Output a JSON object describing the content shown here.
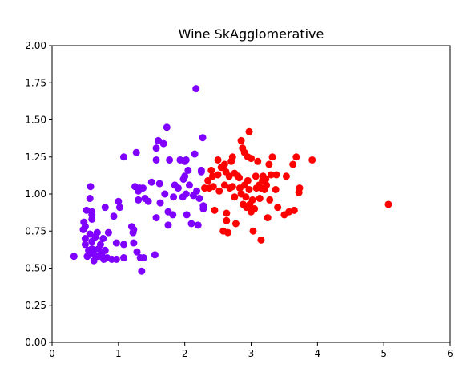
{
  "chart_data": {
    "type": "scatter",
    "title": "Wine SkAgglomerative",
    "xlabel": "",
    "ylabel": "",
    "xlim": [
      0,
      6
    ],
    "ylim": [
      0,
      2
    ],
    "x_ticks": [
      "0",
      "1",
      "2",
      "3",
      "4",
      "5",
      "6"
    ],
    "y_ticks": [
      "0.00",
      "0.25",
      "0.50",
      "0.75",
      "1.00",
      "1.25",
      "1.50",
      "1.75",
      "2.00"
    ],
    "grid": false,
    "legend": "none",
    "series": [
      {
        "color": "#7f00ff",
        "points": [
          [
            0.33,
            0.58
          ],
          [
            0.47,
            0.76
          ],
          [
            0.48,
            0.81
          ],
          [
            0.5,
            0.66
          ],
          [
            0.5,
            0.78
          ],
          [
            0.52,
            0.89
          ],
          [
            0.5,
            0.7
          ],
          [
            0.53,
            0.58
          ],
          [
            0.55,
            0.62
          ],
          [
            0.57,
            0.97
          ],
          [
            0.58,
            1.05
          ],
          [
            0.6,
            0.88
          ],
          [
            0.6,
            0.86
          ],
          [
            0.6,
            0.83
          ],
          [
            0.57,
            0.73
          ],
          [
            0.6,
            0.68
          ],
          [
            0.6,
            0.63
          ],
          [
            0.62,
            0.6
          ],
          [
            0.63,
            0.55
          ],
          [
            0.65,
            0.71
          ],
          [
            0.68,
            0.74
          ],
          [
            0.7,
            0.63
          ],
          [
            0.7,
            0.58
          ],
          [
            0.73,
            0.66
          ],
          [
            0.75,
            0.6
          ],
          [
            0.77,
            0.7
          ],
          [
            0.78,
            0.56
          ],
          [
            0.8,
            0.62
          ],
          [
            0.8,
            0.91
          ],
          [
            0.83,
            0.57
          ],
          [
            0.85,
            0.74
          ],
          [
            0.9,
            0.56
          ],
          [
            0.93,
            0.85
          ],
          [
            0.97,
            0.67
          ],
          [
            0.97,
            0.56
          ],
          [
            1.0,
            0.95
          ],
          [
            1.02,
            0.91
          ],
          [
            1.08,
            0.66
          ],
          [
            1.08,
            0.57
          ],
          [
            1.08,
            1.25
          ],
          [
            1.2,
            0.78
          ],
          [
            1.22,
            0.74
          ],
          [
            1.23,
            0.76
          ],
          [
            1.23,
            0.67
          ],
          [
            1.25,
            1.05
          ],
          [
            1.27,
            1.28
          ],
          [
            1.28,
            0.61
          ],
          [
            1.3,
            0.96
          ],
          [
            1.3,
            1.02
          ],
          [
            1.32,
            1.04
          ],
          [
            1.33,
            0.57
          ],
          [
            1.35,
            0.48
          ],
          [
            1.37,
            1.04
          ],
          [
            1.38,
            0.57
          ],
          [
            1.4,
            0.97
          ],
          [
            1.45,
            0.95
          ],
          [
            1.5,
            1.08
          ],
          [
            1.55,
            0.59
          ],
          [
            1.57,
            1.23
          ],
          [
            1.57,
            1.31
          ],
          [
            1.57,
            0.84
          ],
          [
            1.6,
            1.36
          ],
          [
            1.62,
            1.07
          ],
          [
            1.63,
            0.94
          ],
          [
            1.68,
            1.34
          ],
          [
            1.7,
            1.0
          ],
          [
            1.73,
            1.45
          ],
          [
            1.75,
            0.79
          ],
          [
            1.75,
            0.88
          ],
          [
            1.77,
            1.23
          ],
          [
            1.82,
            0.86
          ],
          [
            1.83,
            0.98
          ],
          [
            1.85,
            1.06
          ],
          [
            1.9,
            1.04
          ],
          [
            1.93,
            1.23
          ],
          [
            1.97,
            0.98
          ],
          [
            1.98,
            1.1
          ],
          [
            2.0,
            1.12
          ],
          [
            2.0,
            1.22
          ],
          [
            2.02,
            1.23
          ],
          [
            2.02,
            1.0
          ],
          [
            2.03,
            0.86
          ],
          [
            2.05,
            1.16
          ],
          [
            2.07,
            1.06
          ],
          [
            2.1,
            0.8
          ],
          [
            2.13,
            0.99
          ],
          [
            2.15,
            1.27
          ],
          [
            2.17,
            1.71
          ],
          [
            2.18,
            1.02
          ],
          [
            2.2,
            0.79
          ],
          [
            2.22,
            0.97
          ],
          [
            2.25,
            1.16
          ],
          [
            2.25,
            1.15
          ],
          [
            2.27,
            1.38
          ],
          [
            2.28,
            0.92
          ],
          [
            2.28,
            0.9
          ]
        ]
      },
      {
        "color": "#ff0000",
        "points": [
          [
            2.3,
            1.04
          ],
          [
            2.35,
            1.09
          ],
          [
            2.37,
            1.04
          ],
          [
            2.4,
            1.16
          ],
          [
            2.42,
            1.12
          ],
          [
            2.43,
            1.05
          ],
          [
            2.45,
            0.89
          ],
          [
            2.5,
            1.23
          ],
          [
            2.5,
            1.13
          ],
          [
            2.52,
            1.02
          ],
          [
            2.55,
            1.18
          ],
          [
            2.58,
            0.75
          ],
          [
            2.6,
            1.06
          ],
          [
            2.6,
            1.2
          ],
          [
            2.62,
            1.15
          ],
          [
            2.63,
            0.87
          ],
          [
            2.63,
            0.82
          ],
          [
            2.65,
            0.74
          ],
          [
            2.67,
            1.12
          ],
          [
            2.68,
            1.04
          ],
          [
            2.7,
            1.22
          ],
          [
            2.72,
            1.25
          ],
          [
            2.72,
            1.05
          ],
          [
            2.75,
            0.98
          ],
          [
            2.75,
            1.14
          ],
          [
            2.77,
            0.8
          ],
          [
            2.8,
            1.12
          ],
          [
            2.82,
            1.11
          ],
          [
            2.83,
            1.04
          ],
          [
            2.85,
            1.36
          ],
          [
            2.85,
            1.0
          ],
          [
            2.87,
            1.31
          ],
          [
            2.88,
            0.93
          ],
          [
            2.9,
            1.28
          ],
          [
            2.9,
            1.06
          ],
          [
            2.92,
            0.98
          ],
          [
            2.93,
            0.91
          ],
          [
            2.95,
            1.25
          ],
          [
            2.95,
            1.09
          ],
          [
            2.97,
            1.42
          ],
          [
            2.97,
            1.03
          ],
          [
            2.98,
            0.93
          ],
          [
            3.0,
            1.24
          ],
          [
            3.0,
            0.88
          ],
          [
            3.02,
            0.96
          ],
          [
            3.03,
            0.75
          ],
          [
            3.05,
            0.9
          ],
          [
            3.07,
            1.12
          ],
          [
            3.08,
            1.04
          ],
          [
            3.1,
            1.22
          ],
          [
            3.12,
            1.06
          ],
          [
            3.13,
            0.97
          ],
          [
            3.15,
            1.04
          ],
          [
            3.15,
            0.69
          ],
          [
            3.17,
            1.09
          ],
          [
            3.18,
            1.12
          ],
          [
            3.2,
            1.03
          ],
          [
            3.22,
            1.1
          ],
          [
            3.23,
            1.06
          ],
          [
            3.25,
            0.84
          ],
          [
            3.27,
            1.2
          ],
          [
            3.28,
            0.96
          ],
          [
            3.3,
            1.13
          ],
          [
            3.32,
            1.25
          ],
          [
            3.37,
            1.03
          ],
          [
            3.38,
            1.13
          ],
          [
            3.4,
            0.91
          ],
          [
            3.5,
            0.86
          ],
          [
            3.53,
            1.12
          ],
          [
            3.57,
            0.88
          ],
          [
            3.63,
            1.2
          ],
          [
            3.65,
            0.89
          ],
          [
            3.68,
            1.25
          ],
          [
            3.72,
            1.01
          ],
          [
            3.73,
            1.04
          ],
          [
            3.92,
            1.23
          ],
          [
            5.07,
            0.93
          ]
        ]
      }
    ]
  }
}
